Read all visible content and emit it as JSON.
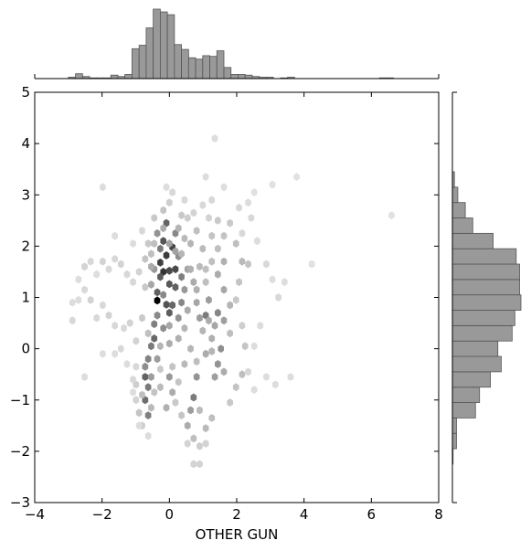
{
  "chart_data": {
    "type": "hexbin-joint",
    "title": "",
    "xlabel": "OTHER GUN",
    "ylabel": "",
    "xlim": [
      -4,
      8
    ],
    "ylim": [
      -3,
      5
    ],
    "xticks": [
      -4,
      -2,
      0,
      2,
      4,
      6,
      8
    ],
    "yticks": [
      -3,
      -2,
      -1,
      0,
      1,
      2,
      3,
      4,
      5
    ],
    "grid": false,
    "legend": "none",
    "colors": {
      "hist_fill": "#999999",
      "hist_edge": "#555555",
      "hex_max": "#000000"
    },
    "hexbin": {
      "hex_size_x": 0.18,
      "cells": [
        [
          -0.36,
          0.94,
          1.0
        ],
        [
          -0.18,
          1.5,
          0.78
        ],
        [
          -0.09,
          1.82,
          0.76
        ],
        [
          -0.27,
          1.68,
          0.74
        ],
        [
          0.0,
          1.52,
          0.7
        ],
        [
          0.09,
          1.98,
          0.72
        ],
        [
          0.18,
          1.55,
          0.7
        ],
        [
          -0.09,
          0.86,
          0.66
        ],
        [
          -0.18,
          2.1,
          0.65
        ],
        [
          0.0,
          1.26,
          0.64
        ],
        [
          0.18,
          1.2,
          0.6
        ],
        [
          -0.27,
          1.4,
          0.62
        ],
        [
          -0.09,
          2.45,
          0.6
        ],
        [
          0.0,
          0.7,
          0.62
        ],
        [
          -0.36,
          1.1,
          0.6
        ],
        [
          0.09,
          0.85,
          0.58
        ],
        [
          -0.45,
          0.2,
          0.58
        ],
        [
          -0.54,
          0.05,
          0.5
        ],
        [
          -0.45,
          0.48,
          0.48
        ],
        [
          -0.63,
          -0.2,
          0.46
        ],
        [
          -0.72,
          -0.55,
          0.6
        ],
        [
          -0.63,
          -0.75,
          0.5
        ],
        [
          -0.72,
          -1.0,
          0.55
        ],
        [
          -0.63,
          -1.3,
          0.48
        ],
        [
          -0.72,
          -0.35,
          0.42
        ],
        [
          -0.36,
          0.65,
          0.44
        ],
        [
          -0.27,
          1.95,
          0.5
        ],
        [
          0.18,
          2.25,
          0.44
        ],
        [
          0.27,
          1.8,
          0.42
        ],
        [
          0.36,
          1.4,
          0.48
        ],
        [
          0.36,
          0.9,
          0.45
        ],
        [
          0.27,
          0.6,
          0.4
        ],
        [
          -0.18,
          0.4,
          0.42
        ],
        [
          -0.36,
          -0.2,
          0.36
        ],
        [
          -0.54,
          -0.55,
          0.36
        ],
        [
          -0.36,
          2.25,
          0.4
        ],
        [
          -0.45,
          1.55,
          0.38
        ],
        [
          -0.54,
          1.25,
          0.32
        ],
        [
          -0.18,
          1.05,
          0.44
        ],
        [
          0.45,
          1.15,
          0.38
        ],
        [
          0.54,
          1.55,
          0.34
        ],
        [
          0.72,
          1.3,
          0.3
        ],
        [
          0.81,
          0.9,
          0.32
        ],
        [
          0.9,
          0.6,
          0.36
        ],
        [
          0.72,
          -0.95,
          0.5
        ],
        [
          0.81,
          -0.55,
          0.4
        ],
        [
          0.63,
          -1.2,
          0.36
        ],
        [
          0.54,
          -1.5,
          0.3
        ],
        [
          1.08,
          0.65,
          0.5
        ],
        [
          1.44,
          0.7,
          0.45
        ],
        [
          1.62,
          0.55,
          0.35
        ],
        [
          1.17,
          0.95,
          0.36
        ],
        [
          1.35,
          0.45,
          0.32
        ],
        [
          1.44,
          -0.3,
          0.4
        ],
        [
          1.35,
          -0.55,
          0.35
        ],
        [
          1.62,
          -0.45,
          0.3
        ],
        [
          1.53,
          0.0,
          0.42
        ],
        [
          1.08,
          -0.1,
          0.3
        ],
        [
          1.26,
          0.2,
          0.28
        ],
        [
          1.62,
          1.15,
          0.32
        ],
        [
          1.44,
          1.45,
          0.3
        ],
        [
          1.62,
          1.7,
          0.28
        ],
        [
          1.8,
          0.85,
          0.26
        ],
        [
          1.8,
          0.3,
          0.22
        ],
        [
          0.0,
          -0.55,
          0.38
        ],
        [
          0.09,
          -0.85,
          0.3
        ],
        [
          -0.09,
          -1.15,
          0.28
        ],
        [
          0.0,
          0.1,
          0.3
        ],
        [
          0.27,
          0.2,
          0.28
        ],
        [
          0.45,
          0.4,
          0.26
        ],
        [
          0.63,
          0.0,
          0.26
        ],
        [
          0.45,
          -0.3,
          0.24
        ],
        [
          0.63,
          2.05,
          0.26
        ],
        [
          0.81,
          2.3,
          0.22
        ],
        [
          0.99,
          1.95,
          0.24
        ],
        [
          0.9,
          1.6,
          0.24
        ],
        [
          1.08,
          1.3,
          0.22
        ],
        [
          1.26,
          2.2,
          0.2
        ],
        [
          1.44,
          2.5,
          0.18
        ],
        [
          1.62,
          2.2,
          0.2
        ],
        [
          1.8,
          2.45,
          0.18
        ],
        [
          1.98,
          2.05,
          0.22
        ],
        [
          2.16,
          1.7,
          0.24
        ],
        [
          2.34,
          1.65,
          0.2
        ],
        [
          2.07,
          1.3,
          0.2
        ],
        [
          1.98,
          0.95,
          0.18
        ],
        [
          2.16,
          0.45,
          0.16
        ],
        [
          2.25,
          0.05,
          0.2
        ],
        [
          2.16,
          -0.5,
          0.22
        ],
        [
          1.98,
          -0.75,
          0.2
        ],
        [
          1.8,
          -1.05,
          0.18
        ],
        [
          1.26,
          -1.35,
          0.22
        ],
        [
          1.08,
          -1.55,
          0.24
        ],
        [
          0.9,
          -1.2,
          0.24
        ],
        [
          0.72,
          -1.75,
          0.22
        ],
        [
          0.54,
          -1.85,
          0.14
        ],
        [
          0.72,
          -2.25,
          0.14
        ],
        [
          0.9,
          -2.25,
          0.14
        ],
        [
          0.9,
          -1.9,
          0.16
        ],
        [
          1.08,
          -1.85,
          0.14
        ],
        [
          0.36,
          -1.3,
          0.2
        ],
        [
          0.18,
          -1.05,
          0.18
        ],
        [
          0.27,
          -0.65,
          0.2
        ],
        [
          0.09,
          -0.35,
          0.2
        ],
        [
          -0.27,
          -0.4,
          0.18
        ],
        [
          -0.45,
          -0.85,
          0.2
        ],
        [
          -0.81,
          -0.9,
          0.22
        ],
        [
          -0.99,
          -0.7,
          0.16
        ],
        [
          -0.9,
          -1.25,
          0.2
        ],
        [
          -0.81,
          -1.5,
          0.16
        ],
        [
          -0.99,
          -1.0,
          0.14
        ],
        [
          -1.08,
          -0.6,
          0.12
        ],
        [
          -0.99,
          -0.35,
          0.12
        ],
        [
          -0.63,
          0.3,
          0.22
        ],
        [
          -0.81,
          0.6,
          0.18
        ],
        [
          -0.99,
          0.15,
          0.14
        ],
        [
          -1.17,
          0.5,
          0.14
        ],
        [
          -1.35,
          0.4,
          0.12
        ],
        [
          -1.44,
          0.0,
          0.12
        ],
        [
          -1.62,
          0.45,
          0.12
        ],
        [
          -1.8,
          0.65,
          0.14
        ],
        [
          -1.98,
          0.85,
          0.12
        ],
        [
          -2.16,
          0.6,
          0.12
        ],
        [
          -2.34,
          0.95,
          0.14
        ],
        [
          -2.52,
          1.15,
          0.12
        ],
        [
          -2.7,
          0.95,
          0.1
        ],
        [
          -2.88,
          0.55,
          0.12
        ],
        [
          -2.88,
          0.9,
          0.1
        ],
        [
          -2.7,
          1.35,
          0.1
        ],
        [
          -2.52,
          1.6,
          0.14
        ],
        [
          -2.34,
          1.7,
          0.12
        ],
        [
          -2.16,
          1.45,
          0.1
        ],
        [
          -1.98,
          1.7,
          0.14
        ],
        [
          -1.8,
          1.55,
          0.12
        ],
        [
          -1.62,
          1.75,
          0.12
        ],
        [
          -1.44,
          1.65,
          0.14
        ],
        [
          -1.26,
          1.45,
          0.12
        ],
        [
          -1.08,
          1.3,
          0.12
        ],
        [
          -0.9,
          1.5,
          0.14
        ],
        [
          -0.72,
          1.2,
          0.18
        ],
        [
          -0.72,
          1.75,
          0.2
        ],
        [
          -0.63,
          2.05,
          0.18
        ],
        [
          -0.81,
          2.3,
          0.12
        ],
        [
          -0.45,
          2.55,
          0.18
        ],
        [
          -0.18,
          2.7,
          0.2
        ],
        [
          0.0,
          2.85,
          0.16
        ],
        [
          0.09,
          3.05,
          0.12
        ],
        [
          -0.09,
          3.15,
          0.1
        ],
        [
          0.36,
          2.6,
          0.18
        ],
        [
          0.45,
          2.9,
          0.12
        ],
        [
          0.54,
          2.55,
          0.16
        ],
        [
          0.72,
          2.65,
          0.14
        ],
        [
          0.99,
          2.8,
          0.12
        ],
        [
          1.17,
          2.55,
          0.14
        ],
        [
          1.26,
          2.9,
          0.12
        ],
        [
          1.08,
          3.35,
          0.1
        ],
        [
          1.35,
          4.1,
          0.1
        ],
        [
          1.62,
          3.15,
          0.1
        ],
        [
          2.07,
          2.75,
          0.12
        ],
        [
          2.43,
          2.55,
          0.12
        ],
        [
          2.61,
          2.1,
          0.1
        ],
        [
          2.88,
          1.65,
          0.12
        ],
        [
          3.06,
          1.35,
          0.1
        ],
        [
          3.24,
          1.0,
          0.12
        ],
        [
          3.42,
          1.3,
          0.1
        ],
        [
          2.7,
          0.45,
          0.1
        ],
        [
          2.52,
          0.05,
          0.1
        ],
        [
          2.88,
          -0.55,
          0.1
        ],
        [
          3.15,
          -0.7,
          0.1
        ],
        [
          3.6,
          -0.55,
          0.1
        ],
        [
          2.52,
          -0.8,
          0.1
        ],
        [
          2.34,
          -0.45,
          0.12
        ],
        [
          2.16,
          2.25,
          0.12
        ],
        [
          2.34,
          2.85,
          0.1
        ],
        [
          2.52,
          3.05,
          0.08
        ],
        [
          3.06,
          3.2,
          0.08
        ],
        [
          3.78,
          3.35,
          0.08
        ],
        [
          4.23,
          1.65,
          0.08
        ],
        [
          6.6,
          2.6,
          0.08
        ],
        [
          -1.98,
          -0.1,
          0.1
        ],
        [
          -2.52,
          -0.55,
          0.1
        ],
        [
          -1.62,
          -0.1,
          0.1
        ],
        [
          -1.26,
          -0.3,
          0.1
        ],
        [
          -1.08,
          -0.85,
          0.1
        ],
        [
          -0.63,
          -1.7,
          0.1
        ],
        [
          -0.9,
          -1.5,
          0.1
        ],
        [
          -1.98,
          3.15,
          0.1
        ],
        [
          -1.62,
          2.2,
          0.1
        ],
        [
          -1.08,
          2.05,
          0.1
        ],
        [
          -0.18,
          2.35,
          0.3
        ],
        [
          0.27,
          2.35,
          0.26
        ],
        [
          0.45,
          2.15,
          0.24
        ],
        [
          -0.27,
          -0.75,
          0.24
        ],
        [
          -0.54,
          -1.15,
          0.24
        ],
        [
          0.54,
          0.75,
          0.3
        ],
        [
          0.63,
          1.55,
          0.28
        ],
        [
          0.81,
          1.15,
          0.28
        ],
        [
          0.99,
          0.35,
          0.26
        ],
        [
          1.17,
          0.55,
          0.3
        ],
        [
          1.26,
          -0.05,
          0.26
        ],
        [
          0.81,
          -0.25,
          0.22
        ],
        [
          1.08,
          1.55,
          0.22
        ],
        [
          1.26,
          1.7,
          0.22
        ],
        [
          1.44,
          1.95,
          0.22
        ],
        [
          0.36,
          1.85,
          0.26
        ],
        [
          -0.54,
          1.6,
          0.3
        ],
        [
          -0.54,
          1.85,
          0.22
        ],
        [
          -0.45,
          2.05,
          0.22
        ],
        [
          0.18,
          1.9,
          0.34
        ],
        [
          0.0,
          2.05,
          0.34
        ],
        [
          0.0,
          0.45,
          0.32
        ],
        [
          -0.27,
          0.05,
          0.26
        ]
      ]
    },
    "marginal_x": {
      "bin_edges": [
        -3.0,
        -2.79,
        -2.58,
        -2.37,
        -2.16,
        -1.95,
        -1.74,
        -1.53,
        -1.32,
        -1.11,
        -0.9,
        -0.69,
        -0.48,
        -0.27,
        -0.06,
        0.15,
        0.36,
        0.57,
        0.78,
        0.99,
        1.2,
        1.41,
        1.62,
        1.83,
        2.04,
        2.25,
        2.46,
        2.67,
        2.88,
        3.09,
        3.3,
        3.51,
        3.72,
        3.93,
        4.14,
        4.35,
        4.56,
        4.77,
        4.98,
        5.19,
        5.4,
        5.61,
        5.82,
        6.03,
        6.24,
        6.45,
        6.66
      ],
      "counts": [
        2,
        7,
        3,
        1,
        1,
        1,
        5,
        3,
        6,
        43,
        48,
        73,
        100,
        96,
        92,
        49,
        42,
        30,
        28,
        33,
        32,
        40,
        16,
        6,
        6,
        5,
        3,
        2,
        2,
        0,
        1,
        2,
        0,
        0,
        0,
        0,
        0,
        0,
        0,
        0,
        0,
        0,
        0,
        0,
        1,
        1
      ]
    },
    "marginal_y": {
      "bin_edges": [
        -2.25,
        -1.95,
        -1.65,
        -1.35,
        -1.05,
        -0.75,
        -0.45,
        -0.15,
        0.15,
        0.45,
        0.75,
        1.05,
        1.35,
        1.65,
        1.95,
        2.25,
        2.55,
        2.85,
        3.15,
        3.45
      ],
      "counts": [
        1,
        6,
        6,
        34,
        40,
        56,
        72,
        67,
        88,
        92,
        101,
        99,
        99,
        94,
        60,
        30,
        19,
        8,
        3
      ]
    }
  }
}
